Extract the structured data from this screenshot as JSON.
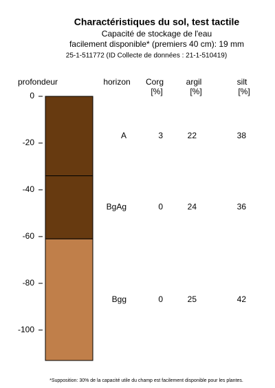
{
  "chart_data": {
    "type": "soil-profile",
    "title": "Charactéristiques du sol, test tactile",
    "subtitle": [
      "Capacité de stockage de l'eau",
      "facilement disponible* (premiers 40 cm): 19 mm",
      "25-1-511772 (ID Collecte de données : 21-1-510419)"
    ],
    "y_label": "profondeur",
    "columns": [
      {
        "name": "horizon"
      },
      {
        "name": "Corg",
        "unit": "[%]"
      },
      {
        "name": "argil",
        "unit": "[%]"
      },
      {
        "name": "silt",
        "unit": "[%]"
      }
    ],
    "ylim": [
      -113,
      0
    ],
    "yticks": [
      0,
      -20,
      -40,
      -60,
      -80,
      -100
    ],
    "horizons": [
      {
        "name": "A",
        "top": 0,
        "bottom": -34,
        "color": "#673a10",
        "corg": 3,
        "argil": 22,
        "silt": 38
      },
      {
        "name": "BgAg",
        "top": -34,
        "bottom": -61,
        "color": "#673a10",
        "corg": 0,
        "argil": 24,
        "silt": 36
      },
      {
        "name": "Bgg",
        "top": -61,
        "bottom": -113,
        "color": "#c07f4a",
        "corg": 0,
        "argil": 25,
        "silt": 42
      }
    ],
    "footnote": "*Supposition: 30% de la capacité utile du champ est facilement disponible pour les plantes."
  }
}
